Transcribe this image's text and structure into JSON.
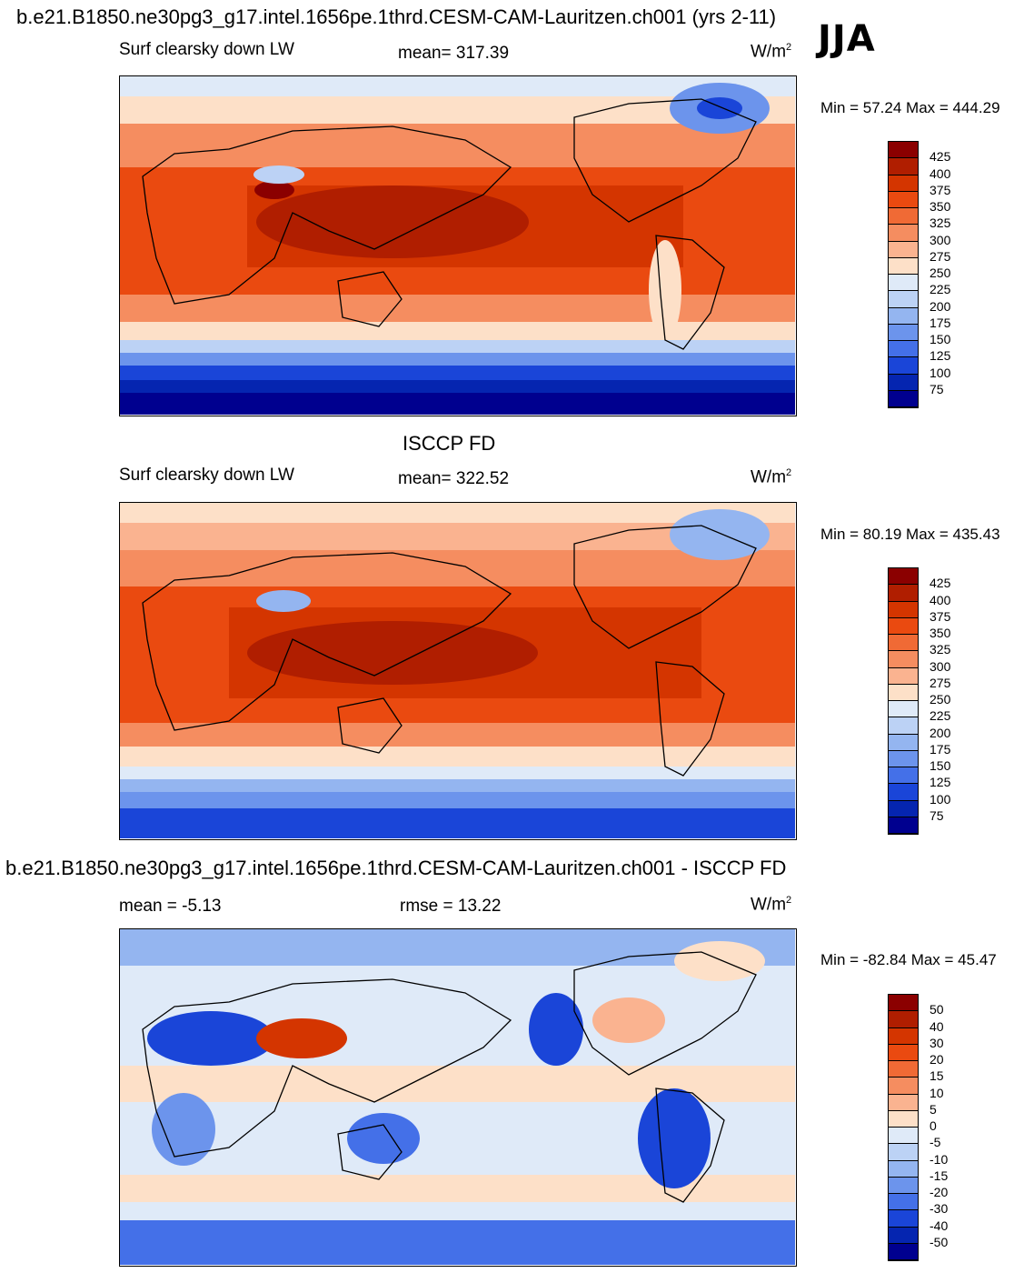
{
  "header": {
    "case_title": "b.e21.B1850.ne30pg3_g17.intel.1656pe.1thrd.CESM-CAM-Lauritzen.ch001 (yrs 2-11)",
    "season": "JJA"
  },
  "panels": [
    {
      "id": "model",
      "title": "",
      "variable": "Surf clearsky down LW",
      "stat1": "mean= 317.39",
      "stat2": "",
      "units": "W/m",
      "units_sup": "2",
      "minmax": "Min =  57.24 Max = 444.29",
      "colorbar_labels": [
        "425",
        "400",
        "375",
        "350",
        "325",
        "300",
        "275",
        "250",
        "225",
        "200",
        "175",
        "150",
        "125",
        "100",
        "75"
      ],
      "colorbar_colors": [
        "#8b0000",
        "#b01e00",
        "#d43500",
        "#ea4a10",
        "#f06a35",
        "#f58d60",
        "#fab390",
        "#fde0c8",
        "#dfeaf8",
        "#bcd2f5",
        "#94b5f0",
        "#6c94ec",
        "#4470e8",
        "#1a45d8",
        "#0525b0",
        "#00008f"
      ]
    },
    {
      "id": "obs",
      "title": "ISCCP FD",
      "variable": "Surf clearsky down LW",
      "stat1": "mean= 322.52",
      "stat2": "",
      "units": "W/m",
      "units_sup": "2",
      "minmax": "Min =  80.19 Max = 435.43",
      "colorbar_labels": [
        "425",
        "400",
        "375",
        "350",
        "325",
        "300",
        "275",
        "250",
        "225",
        "200",
        "175",
        "150",
        "125",
        "100",
        "75"
      ],
      "colorbar_colors": [
        "#8b0000",
        "#b01e00",
        "#d43500",
        "#ea4a10",
        "#f06a35",
        "#f58d60",
        "#fab390",
        "#fde0c8",
        "#dfeaf8",
        "#bcd2f5",
        "#94b5f0",
        "#6c94ec",
        "#4470e8",
        "#1a45d8",
        "#0525b0",
        "#00008f"
      ]
    },
    {
      "id": "diff",
      "title": "b.e21.B1850.ne30pg3_g17.intel.1656pe.1thrd.CESM-CAM-Lauritzen.ch001 - ISCCP FD",
      "variable": "",
      "stat1": "mean =  -5.13",
      "stat2": "rmse =  13.22",
      "units": "W/m",
      "units_sup": "2",
      "minmax": "Min = -82.84 Max =  45.47",
      "colorbar_labels": [
        "50",
        "40",
        "30",
        "20",
        "15",
        "10",
        "5",
        "0",
        "-5",
        "-10",
        "-15",
        "-20",
        "-30",
        "-40",
        "-50"
      ],
      "colorbar_colors": [
        "#8b0000",
        "#b01e00",
        "#d43500",
        "#ea4a10",
        "#f06a35",
        "#f58d60",
        "#fab390",
        "#fde0c8",
        "#dfeaf8",
        "#bcd2f5",
        "#94b5f0",
        "#6c94ec",
        "#4470e8",
        "#1a45d8",
        "#0525b0",
        "#00008f"
      ]
    }
  ]
}
